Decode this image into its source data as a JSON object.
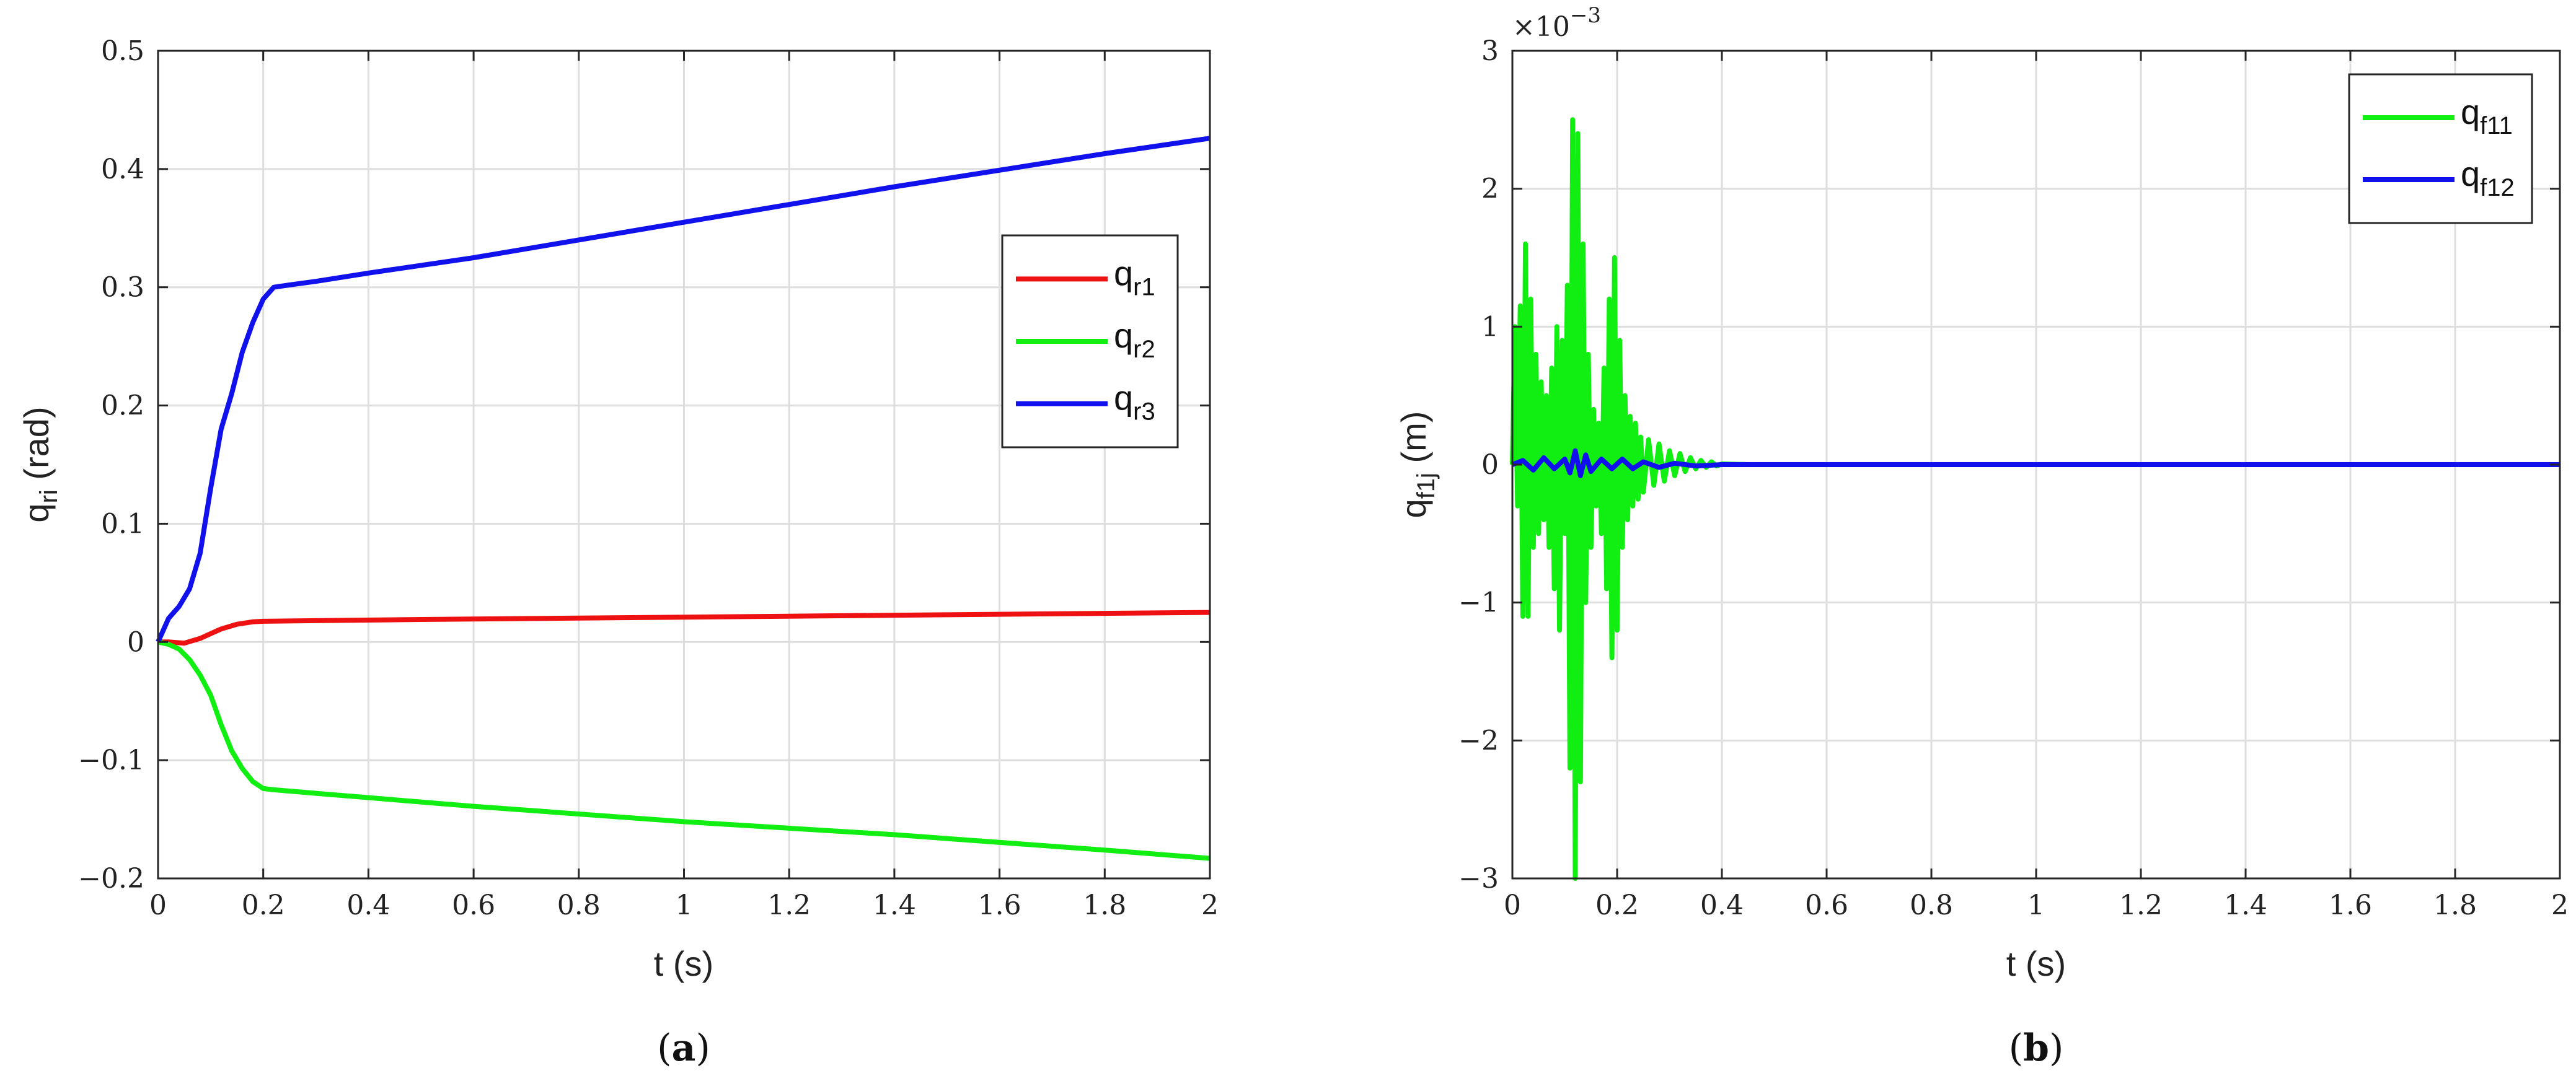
{
  "panels": {
    "a": "a",
    "b": "b"
  },
  "chart_data": [
    {
      "type": "line",
      "panel_label": "a",
      "xlabel": "t (s)",
      "ylabel": {
        "main": "q",
        "sub": "ri",
        "unit": " (rad)"
      },
      "xlim": [
        0,
        2
      ],
      "ylim": [
        -0.2,
        0.5
      ],
      "xticks": [
        0,
        0.2,
        0.4,
        0.6,
        0.8,
        1,
        1.2,
        1.4,
        1.6,
        1.8,
        2
      ],
      "yticks": [
        -0.2,
        -0.1,
        0,
        0.1,
        0.2,
        0.3,
        0.4,
        0.5
      ],
      "xtick_labels": [
        "0",
        "0.2",
        "0.4",
        "0.6",
        "0.8",
        "1",
        "1.2",
        "1.4",
        "1.6",
        "1.8",
        "2"
      ],
      "ytick_labels": [
        "−0.2",
        "−0.1",
        "0",
        "0.1",
        "0.2",
        "0.3",
        "0.4",
        "0.5"
      ],
      "grid": true,
      "legend_position": "right",
      "series": [
        {
          "name": "q_r1",
          "label_main": "q",
          "label_sub": "r1",
          "color": "#ee1111",
          "x": [
            0,
            0.02,
            0.05,
            0.08,
            0.1,
            0.12,
            0.15,
            0.18,
            0.2,
            0.3,
            0.5,
            1.0,
            1.5,
            2.0
          ],
          "y": [
            0,
            0.0,
            -0.001,
            0.003,
            0.007,
            0.011,
            0.015,
            0.017,
            0.0175,
            0.018,
            0.019,
            0.021,
            0.023,
            0.025
          ]
        },
        {
          "name": "q_r2",
          "label_main": "q",
          "label_sub": "r2",
          "color": "#11ee11",
          "x": [
            0,
            0.02,
            0.04,
            0.06,
            0.08,
            0.1,
            0.12,
            0.14,
            0.16,
            0.18,
            0.2,
            0.22,
            0.3,
            0.6,
            1.0,
            1.4,
            1.8,
            2.0
          ],
          "y": [
            0,
            -0.002,
            -0.006,
            -0.015,
            -0.028,
            -0.045,
            -0.07,
            -0.092,
            -0.107,
            -0.118,
            -0.124,
            -0.125,
            -0.128,
            -0.139,
            -0.152,
            -0.163,
            -0.176,
            -0.183
          ]
        },
        {
          "name": "q_r3",
          "label_main": "q",
          "label_sub": "r3",
          "color": "#1111ee",
          "x": [
            0,
            0.02,
            0.04,
            0.06,
            0.08,
            0.1,
            0.12,
            0.14,
            0.16,
            0.18,
            0.2,
            0.22,
            0.25,
            0.3,
            0.4,
            0.6,
            1.0,
            1.4,
            1.8,
            2.0
          ],
          "y": [
            0,
            0.02,
            0.03,
            0.045,
            0.075,
            0.13,
            0.18,
            0.21,
            0.245,
            0.27,
            0.29,
            0.3,
            0.302,
            0.305,
            0.312,
            0.325,
            0.355,
            0.385,
            0.413,
            0.426
          ]
        }
      ]
    },
    {
      "type": "line",
      "panel_label": "b",
      "xlabel": "t (s)",
      "ylabel": {
        "main": "q",
        "sub": "f1j",
        "unit": " (m)"
      },
      "exponent_label": {
        "base": "×10",
        "exp": "−3"
      },
      "xlim": [
        0,
        2
      ],
      "ylim": [
        -3,
        3
      ],
      "xticks": [
        0,
        0.2,
        0.4,
        0.6,
        0.8,
        1,
        1.2,
        1.4,
        1.6,
        1.8,
        2
      ],
      "yticks": [
        -3,
        -2,
        -1,
        0,
        1,
        2,
        3
      ],
      "xtick_labels": [
        "0",
        "0.2",
        "0.4",
        "0.6",
        "0.8",
        "1",
        "1.2",
        "1.4",
        "1.6",
        "1.8",
        "2"
      ],
      "ytick_labels": [
        "−3",
        "−2",
        "−1",
        "0",
        "1",
        "2",
        "3"
      ],
      "grid": true,
      "legend_position": "top-right",
      "series": [
        {
          "name": "q_f11",
          "label_main": "q",
          "label_sub": "f11",
          "color": "#11ee11",
          "x": [
            0,
            0.005,
            0.01,
            0.015,
            0.02,
            0.025,
            0.03,
            0.035,
            0.04,
            0.045,
            0.05,
            0.055,
            0.06,
            0.065,
            0.07,
            0.075,
            0.08,
            0.085,
            0.09,
            0.095,
            0.1,
            0.105,
            0.11,
            0.115,
            0.12,
            0.125,
            0.13,
            0.135,
            0.14,
            0.145,
            0.15,
            0.155,
            0.16,
            0.165,
            0.17,
            0.175,
            0.18,
            0.185,
            0.19,
            0.195,
            0.2,
            0.205,
            0.21,
            0.215,
            0.22,
            0.225,
            0.23,
            0.235,
            0.24,
            0.245,
            0.25,
            0.26,
            0.27,
            0.28,
            0.29,
            0.3,
            0.31,
            0.32,
            0.33,
            0.34,
            0.35,
            0.36,
            0.37,
            0.38,
            0.39,
            0.4,
            0.45,
            0.5,
            2.0
          ],
          "y": [
            0,
            1.0,
            -0.3,
            1.15,
            -1.1,
            1.6,
            -1.1,
            1.2,
            -0.6,
            0.8,
            -0.5,
            0.6,
            -0.4,
            0.5,
            -0.6,
            0.7,
            -0.9,
            1.0,
            -1.2,
            0.9,
            -0.5,
            1.3,
            -2.2,
            2.5,
            -3.0,
            2.4,
            -2.3,
            1.6,
            -1.0,
            0.8,
            -0.6,
            0.4,
            -0.3,
            0.3,
            -0.5,
            0.7,
            -0.9,
            1.2,
            -1.4,
            1.5,
            -1.2,
            0.9,
            -0.6,
            0.5,
            -0.4,
            0.35,
            -0.3,
            0.3,
            -0.25,
            0.2,
            -0.2,
            0.18,
            -0.15,
            0.15,
            -0.12,
            0.1,
            -0.08,
            0.08,
            -0.05,
            0.05,
            -0.03,
            0.03,
            -0.02,
            0.02,
            -0.01,
            0.005,
            0.0,
            0.0,
            0.0
          ]
        },
        {
          "name": "q_f12",
          "label_main": "q",
          "label_sub": "f12",
          "color": "#1111ee",
          "x": [
            0,
            0.02,
            0.04,
            0.06,
            0.08,
            0.1,
            0.11,
            0.12,
            0.13,
            0.14,
            0.15,
            0.17,
            0.19,
            0.21,
            0.23,
            0.25,
            0.28,
            0.31,
            0.35,
            0.4,
            0.5,
            2.0
          ],
          "y": [
            0,
            0.03,
            -0.04,
            0.05,
            -0.03,
            0.04,
            -0.06,
            0.1,
            -0.08,
            0.07,
            -0.05,
            0.04,
            -0.03,
            0.04,
            -0.03,
            0.02,
            -0.02,
            0.01,
            -0.01,
            0.0,
            0.0,
            0.0
          ]
        }
      ]
    }
  ]
}
